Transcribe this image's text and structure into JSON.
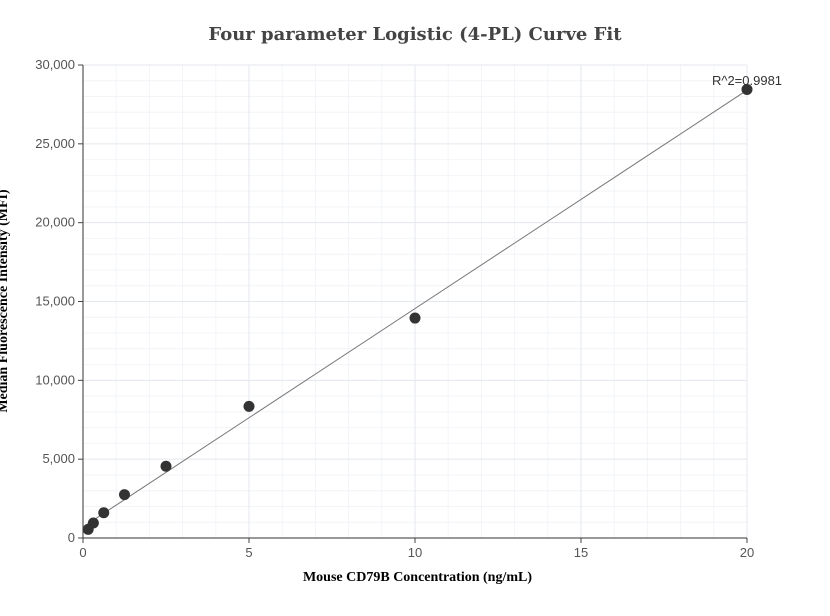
{
  "chart_data": {
    "type": "scatter",
    "title": "Four parameter Logistic (4-PL) Curve Fit",
    "xlabel": "Mouse CD79B Concentration (ng/mL)",
    "ylabel": "Median Fluorescence Intensity (MFI)",
    "xlim": [
      0,
      20
    ],
    "ylim": [
      0,
      30000
    ],
    "x_ticks": [
      "0",
      "5",
      "10",
      "15",
      "20"
    ],
    "y_ticks": [
      "0",
      "5,000",
      "10,000",
      "15,000",
      "20,000",
      "25,000",
      "30,000"
    ],
    "grid": true,
    "points": [
      {
        "x": 0.156,
        "y": 550
      },
      {
        "x": 0.3125,
        "y": 950
      },
      {
        "x": 0.625,
        "y": 1600
      },
      {
        "x": 1.25,
        "y": 2750
      },
      {
        "x": 2.5,
        "y": 4550
      },
      {
        "x": 5,
        "y": 8350
      },
      {
        "x": 10,
        "y": 13950
      },
      {
        "x": 20,
        "y": 28450
      }
    ],
    "fit_line": {
      "x": [
        0,
        20
      ],
      "y": [
        700,
        28400
      ]
    },
    "annotation": "R^2=0.9981",
    "marker_color": "#333333",
    "line_color": "#777777"
  }
}
